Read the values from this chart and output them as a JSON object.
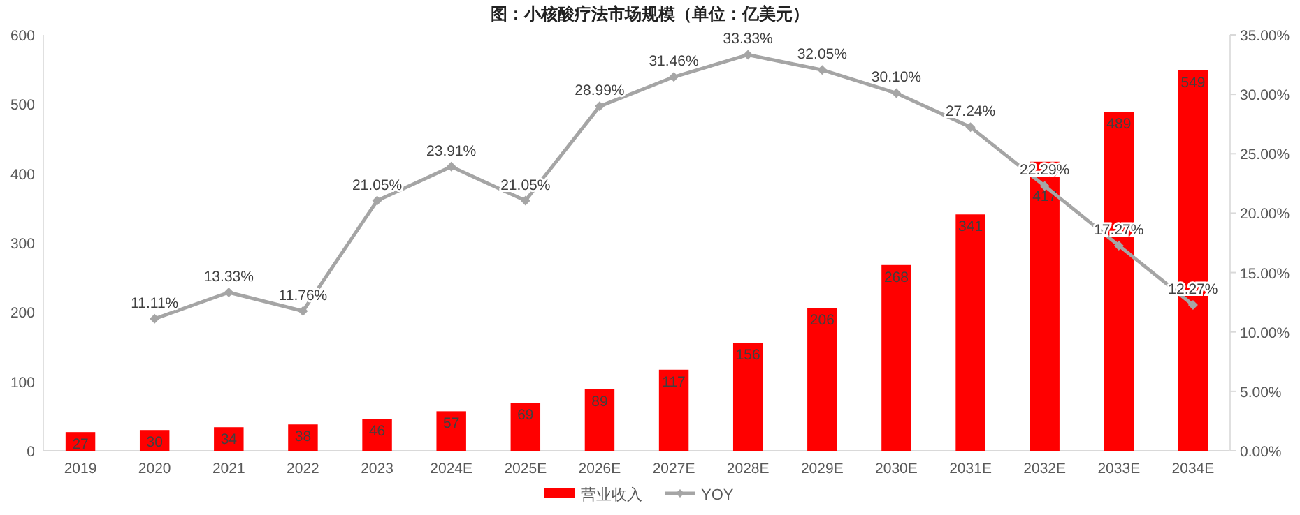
{
  "chart_data": {
    "type": "bar",
    "title": "图：小核酸疗法市场规模（单位：亿美元）",
    "categories": [
      "2019",
      "2020",
      "2021",
      "2022",
      "2023",
      "2024E",
      "2025E",
      "2026E",
      "2027E",
      "2028E",
      "2029E",
      "2030E",
      "2031E",
      "2032E",
      "2033E",
      "2034E"
    ],
    "series": [
      {
        "name": "营业收入",
        "color": "#ff0000",
        "values": [
          27,
          30,
          34,
          38,
          46,
          57,
          69,
          89,
          117,
          156,
          206,
          268,
          341,
          417,
          489,
          549
        ],
        "value_labels": [
          "27",
          "30",
          "34",
          "38",
          "46",
          "57",
          "69",
          "89",
          "117",
          "156",
          "206",
          "268",
          "341",
          "417",
          "489",
          "549"
        ]
      },
      {
        "name": "YOY",
        "type": "line",
        "axis": "y2",
        "color": "#a5a5a5",
        "marker": "diamond",
        "values": [
          null,
          11.11,
          13.33,
          11.76,
          21.05,
          23.91,
          21.05,
          28.99,
          31.46,
          33.33,
          32.05,
          30.1,
          27.24,
          22.29,
          17.27,
          12.27
        ],
        "value_labels": [
          null,
          "11.11%",
          "13.33%",
          "11.76%",
          "21.05%",
          "23.91%",
          "21.05%",
          "28.99%",
          "31.46%",
          "33.33%",
          "32.05%",
          "30.10%",
          "27.24%",
          "22.29%",
          "17.27%",
          "12.27%"
        ]
      }
    ],
    "ylim": [
      0,
      600
    ],
    "yticks": [
      0,
      100,
      200,
      300,
      400,
      500,
      600
    ],
    "y2lim": [
      0,
      35
    ],
    "y2ticks": [
      {
        "value": 0,
        "label": "0.00%"
      },
      {
        "value": 5,
        "label": "5.00%"
      },
      {
        "value": 10,
        "label": "10.00%"
      },
      {
        "value": 15,
        "label": "15.00%"
      },
      {
        "value": 20,
        "label": "20.00%"
      },
      {
        "value": 25,
        "label": "25.00%"
      },
      {
        "value": 30,
        "label": "30.00%"
      },
      {
        "value": 35,
        "label": "35.00%"
      }
    ],
    "legend": "bottom"
  }
}
